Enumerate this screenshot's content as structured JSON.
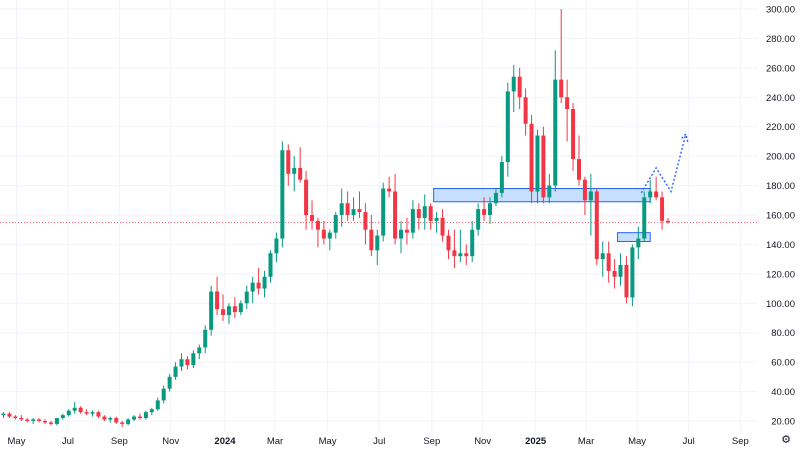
{
  "chart_data": {
    "type": "candlestick",
    "title": "",
    "ylim": [
      12,
      305
    ],
    "y_ticks": [
      "20.00",
      "40.00",
      "60.00",
      "80.00",
      "100.00",
      "120.00",
      "140.00",
      "160.00",
      "180.00",
      "200.00",
      "220.00",
      "240.00",
      "260.00",
      "280.00",
      "300.00"
    ],
    "x_ticks": [
      {
        "label": "May",
        "bold": false
      },
      {
        "label": "Jul",
        "bold": false
      },
      {
        "label": "Sep",
        "bold": false
      },
      {
        "label": "Nov",
        "bold": false
      },
      {
        "label": "2024",
        "bold": true
      },
      {
        "label": "Mar",
        "bold": false
      },
      {
        "label": "May",
        "bold": false
      },
      {
        "label": "Jul",
        "bold": false
      },
      {
        "label": "Sep",
        "bold": false
      },
      {
        "label": "Nov",
        "bold": false
      },
      {
        "label": "2025",
        "bold": true
      },
      {
        "label": "Mar",
        "bold": false
      },
      {
        "label": "May",
        "bold": false
      },
      {
        "label": "Jul",
        "bold": false
      },
      {
        "label": "Sep",
        "bold": false
      }
    ],
    "candles": [
      [
        24,
        26,
        22,
        25
      ],
      [
        25,
        26,
        22,
        23
      ],
      [
        23,
        24,
        21,
        22
      ],
      [
        22,
        24,
        20,
        21
      ],
      [
        21,
        22,
        19,
        20
      ],
      [
        20,
        22,
        18,
        21
      ],
      [
        21,
        22,
        19,
        20
      ],
      [
        20,
        21,
        18,
        19
      ],
      [
        19,
        20,
        17,
        18
      ],
      [
        18,
        22,
        17,
        22
      ],
      [
        22,
        25,
        21,
        24
      ],
      [
        24,
        28,
        23,
        27
      ],
      [
        27,
        33,
        25,
        29
      ],
      [
        29,
        30,
        25,
        26
      ],
      [
        26,
        28,
        24,
        25
      ],
      [
        25,
        27,
        23,
        26
      ],
      [
        26,
        27,
        22,
        23
      ],
      [
        23,
        24,
        20,
        21
      ],
      [
        21,
        23,
        19,
        22
      ],
      [
        22,
        23,
        18,
        19
      ],
      [
        19,
        20,
        16,
        18
      ],
      [
        18,
        22,
        17,
        21
      ],
      [
        21,
        24,
        20,
        23
      ],
      [
        23,
        25,
        21,
        22
      ],
      [
        22,
        27,
        21,
        26
      ],
      [
        26,
        29,
        24,
        28
      ],
      [
        28,
        36,
        27,
        34
      ],
      [
        34,
        44,
        32,
        42
      ],
      [
        42,
        52,
        40,
        50
      ],
      [
        50,
        60,
        48,
        57
      ],
      [
        57,
        66,
        54,
        62
      ],
      [
        62,
        64,
        55,
        58
      ],
      [
        58,
        68,
        56,
        66
      ],
      [
        66,
        72,
        62,
        70
      ],
      [
        70,
        85,
        66,
        82
      ],
      [
        82,
        112,
        78,
        108
      ],
      [
        108,
        118,
        92,
        96
      ],
      [
        96,
        106,
        88,
        92
      ],
      [
        92,
        100,
        86,
        98
      ],
      [
        98,
        104,
        90,
        94
      ],
      [
        94,
        102,
        92,
        100
      ],
      [
        100,
        112,
        96,
        108
      ],
      [
        108,
        118,
        100,
        114
      ],
      [
        114,
        124,
        106,
        110
      ],
      [
        110,
        122,
        104,
        118
      ],
      [
        118,
        136,
        114,
        134
      ],
      [
        134,
        148,
        128,
        144
      ],
      [
        144,
        210,
        138,
        204
      ],
      [
        204,
        208,
        180,
        188
      ],
      [
        188,
        200,
        176,
        192
      ],
      [
        192,
        206,
        182,
        184
      ],
      [
        184,
        190,
        150,
        160
      ],
      [
        160,
        170,
        150,
        156
      ],
      [
        156,
        158,
        138,
        150
      ],
      [
        150,
        156,
        140,
        144
      ],
      [
        144,
        150,
        136,
        148
      ],
      [
        148,
        162,
        144,
        160
      ],
      [
        160,
        178,
        152,
        168
      ],
      [
        168,
        176,
        156,
        160
      ],
      [
        160,
        172,
        156,
        164
      ],
      [
        164,
        176,
        158,
        162
      ],
      [
        162,
        168,
        140,
        150
      ],
      [
        150,
        160,
        132,
        136
      ],
      [
        136,
        150,
        126,
        146
      ],
      [
        146,
        182,
        142,
        178
      ],
      [
        178,
        186,
        172,
        176
      ],
      [
        176,
        188,
        140,
        144
      ],
      [
        144,
        156,
        134,
        150
      ],
      [
        150,
        158,
        140,
        148
      ],
      [
        148,
        170,
        144,
        164
      ],
      [
        164,
        168,
        150,
        158
      ],
      [
        158,
        174,
        150,
        166
      ],
      [
        166,
        168,
        150,
        156
      ],
      [
        156,
        162,
        148,
        158
      ],
      [
        158,
        164,
        142,
        146
      ],
      [
        146,
        150,
        130,
        136
      ],
      [
        136,
        150,
        124,
        132
      ],
      [
        132,
        150,
        128,
        134
      ],
      [
        134,
        140,
        126,
        132
      ],
      [
        132,
        156,
        128,
        150
      ],
      [
        150,
        168,
        146,
        164
      ],
      [
        164,
        172,
        156,
        160
      ],
      [
        160,
        172,
        154,
        168
      ],
      [
        168,
        178,
        166,
        175
      ],
      [
        175,
        200,
        172,
        196
      ],
      [
        196,
        250,
        186,
        244
      ],
      [
        244,
        262,
        230,
        254
      ],
      [
        254,
        260,
        232,
        240
      ],
      [
        240,
        246,
        214,
        222
      ],
      [
        222,
        228,
        168,
        176
      ],
      [
        176,
        218,
        168,
        214
      ],
      [
        214,
        220,
        168,
        172
      ],
      [
        172,
        188,
        168,
        180
      ],
      [
        180,
        272,
        176,
        252
      ],
      [
        252,
        300,
        236,
        240
      ],
      [
        240,
        252,
        210,
        232
      ],
      [
        232,
        236,
        190,
        198
      ],
      [
        198,
        214,
        180,
        184
      ],
      [
        184,
        186,
        160,
        170
      ],
      [
        170,
        188,
        146,
        176
      ],
      [
        176,
        178,
        126,
        130
      ],
      [
        130,
        142,
        118,
        134
      ],
      [
        134,
        142,
        114,
        122
      ],
      [
        122,
        130,
        110,
        118
      ],
      [
        118,
        134,
        112,
        126
      ],
      [
        126,
        132,
        100,
        104
      ],
      [
        104,
        140,
        98,
        138
      ],
      [
        138,
        152,
        130,
        144
      ],
      [
        144,
        176,
        142,
        172
      ],
      [
        172,
        184,
        168,
        176
      ],
      [
        176,
        186,
        170,
        172
      ],
      [
        172,
        176,
        150,
        156
      ],
      [
        156,
        158,
        154,
        155
      ]
    ],
    "projection": [
      [
        172,
        175
      ],
      [
        176,
        192
      ],
      [
        180,
        176
      ],
      [
        184,
        215
      ]
    ],
    "zones": [
      {
        "x0": 72.5,
        "x1": 109,
        "y0": 169,
        "y1": 178
      },
      {
        "x0": 103.5,
        "x1": 109,
        "y0": 142,
        "y1": 148
      }
    ],
    "last_price": 155,
    "colors": {
      "up": "#089981",
      "down": "#f23645",
      "grid": "#f0f3fa",
      "zone_fill": "#bbd9fb",
      "zone_stroke": "#2962ff",
      "projection": "#2962ff",
      "price_line": "#f23645"
    }
  },
  "ui": {
    "settings_icon": "gear-icon"
  }
}
